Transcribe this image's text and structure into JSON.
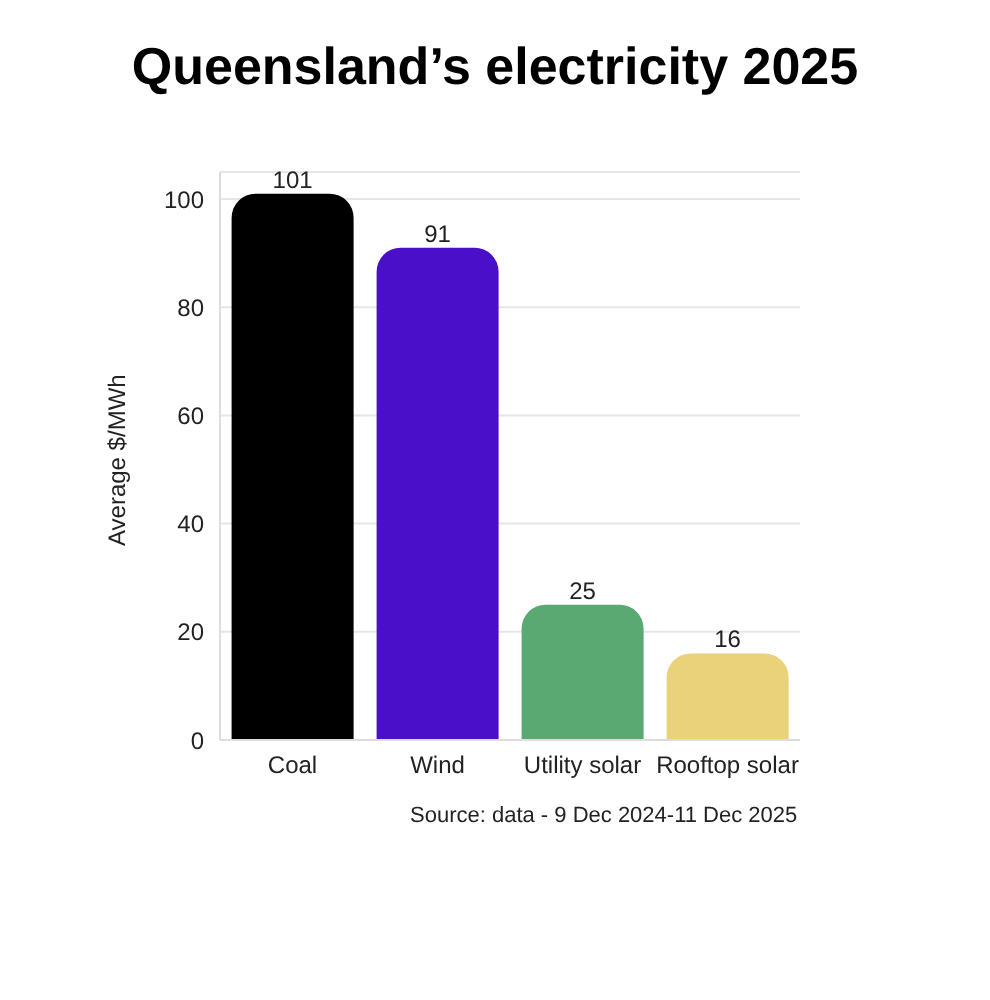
{
  "chart_data": {
    "type": "bar",
    "title": "Queensland’s electricity 2025",
    "ylabel": "Average $/MWh",
    "categories": [
      "Coal",
      "Wind",
      "Utility solar",
      "Rooftop solar"
    ],
    "values": [
      101,
      91,
      25,
      16
    ],
    "colors": [
      "#000000",
      "#4a0fc9",
      "#5aa872",
      "#e9d27a"
    ],
    "ylim": [
      0,
      105
    ],
    "yticks": [
      0,
      20,
      40,
      60,
      80,
      100
    ],
    "grid": "y",
    "data_labels": true,
    "annotations": [
      "Source: data - 9 Dec 2024-11 Dec 2025"
    ]
  }
}
